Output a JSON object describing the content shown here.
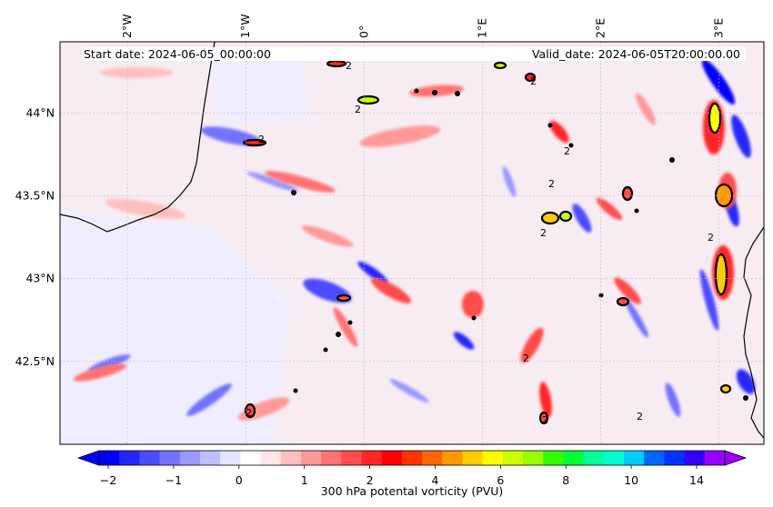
{
  "map": {
    "start_label": "Start date: 2024-06-05_00:00:00",
    "valid_label": "Valid_date: 2024-06-05T20:00:00.00",
    "lon_ticks": [
      {
        "lon": -2,
        "label": "2°W"
      },
      {
        "lon": -1,
        "label": "1°W"
      },
      {
        "lon": 0,
        "label": "0°"
      },
      {
        "lon": 1,
        "label": "1°E"
      },
      {
        "lon": 2,
        "label": "2°E"
      },
      {
        "lon": 3,
        "label": "3°E"
      }
    ],
    "lat_ticks": [
      {
        "lat": 44.0,
        "label": "44°N"
      },
      {
        "lat": 43.5,
        "label": "43.5°N"
      },
      {
        "lat": 43.0,
        "label": "43°N"
      },
      {
        "lat": 42.5,
        "label": "42.5°N"
      }
    ],
    "extent": {
      "lon": [
        -2.57,
        3.38
      ],
      "lat": [
        42.0,
        44.43
      ]
    },
    "contour_label": "2",
    "colorbar": {
      "title": "300 hPa potental vorticity (PVU)",
      "tick_labels": [
        "−2",
        "−1",
        "0",
        "1",
        "2",
        "4",
        "6",
        "8",
        "10",
        "14"
      ],
      "colors": [
        "#0000ff",
        "#2626ff",
        "#4c4cff",
        "#7272ff",
        "#9999ff",
        "#bfbfff",
        "#e5e5ff",
        "#ffffff",
        "#ffe5e5",
        "#ffbfbf",
        "#ff9999",
        "#ff7272",
        "#ff4c4c",
        "#ff2626",
        "#ff0000",
        "#ff3300",
        "#ff6600",
        "#ff9900",
        "#ffcc00",
        "#ffff00",
        "#ccff00",
        "#99ff00",
        "#33ff00",
        "#00ff33",
        "#00ff99",
        "#00ffcc",
        "#00ccff",
        "#0066ff",
        "#0033ff",
        "#3300ff",
        "#9900ff"
      ],
      "extend_low_color": "#0000ff",
      "extend_high_color": "#9900ff"
    }
  }
}
